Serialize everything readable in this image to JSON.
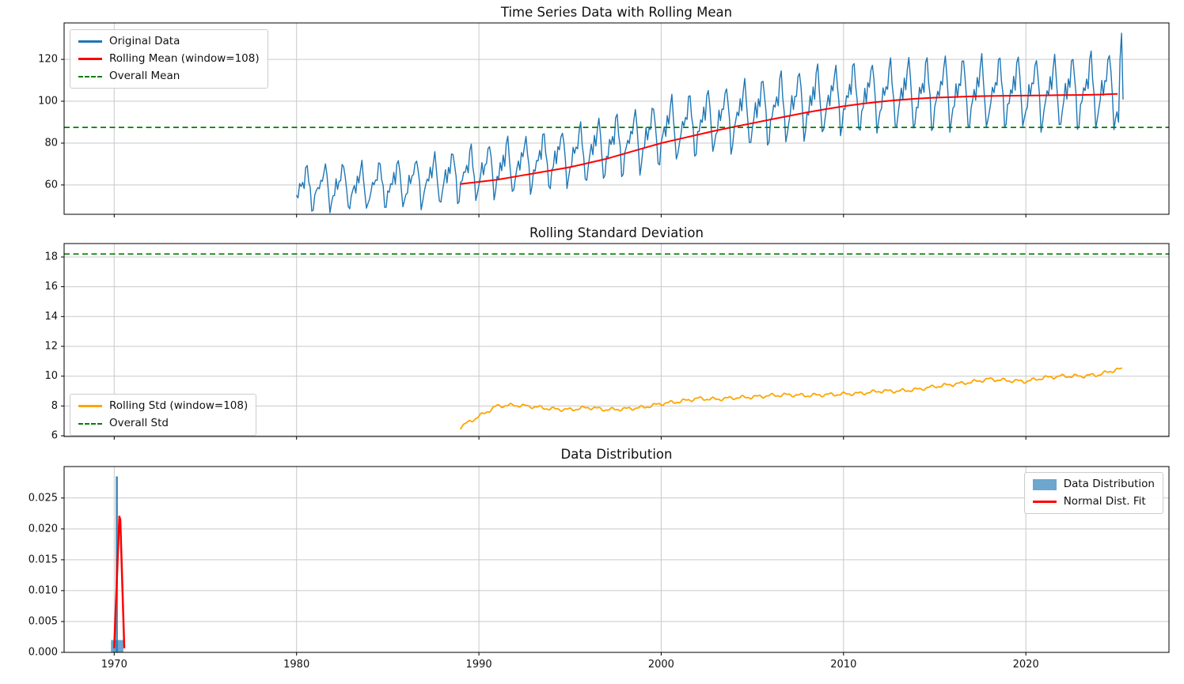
{
  "figure": {
    "background": "#ffffff",
    "grid_color": "#c9c9c9",
    "spine_color": "#000000",
    "tick_label_color": "#111111"
  },
  "chart_data": [
    {
      "id": "time-series-rolling-mean",
      "type": "line",
      "title": "Time Series Data with Rolling Mean",
      "xlim": [
        1967.25,
        2027.85
      ],
      "ylim": [
        46,
        137.4
      ],
      "xticks": [
        1970,
        1980,
        1990,
        2000,
        2010,
        2020
      ],
      "yticks": [
        60,
        80,
        100,
        120
      ],
      "yticklabels": [
        "60",
        "80",
        "100",
        "120"
      ],
      "grid": true,
      "overall_mean": 87.5,
      "overall_mean_color": "#008000",
      "original": {
        "label": "Original Data",
        "color": "#1f77b4",
        "start_year": 1980,
        "season": [
          -0.45,
          -0.3,
          0.15,
          -0.1,
          0.35,
          0.15,
          0.8,
          1,
          0.4,
          -0.15,
          -1,
          -0.85
        ],
        "levels": [
          58.5,
          59,
          59.5,
          59,
          60,
          60.5,
          61.5,
          62.5,
          64,
          65.5,
          67,
          68.5,
          70,
          71.5,
          73,
          75,
          77,
          79,
          81,
          83.5,
          86.5,
          88.5,
          90.5,
          92,
          94,
          95.5,
          97,
          98.5,
          100,
          101,
          102,
          102.5,
          103,
          103.5,
          103.5,
          104,
          104,
          104,
          104.5,
          104.5,
          104,
          104,
          104.5,
          105,
          105.5
        ],
        "amplitudes": [
          10.5,
          10.5,
          11,
          11,
          11,
          11.5,
          11.5,
          12,
          12,
          12.5,
          12.5,
          13,
          13,
          13.5,
          13.5,
          14,
          14,
          14.5,
          14.5,
          14.5,
          15,
          15,
          15,
          15.5,
          15.5,
          15.5,
          16,
          16,
          16,
          16,
          16.5,
          16.5,
          16.5,
          16.5,
          17,
          17,
          17,
          17,
          17,
          17,
          17,
          17,
          17,
          17.5,
          17.5
        ],
        "noise": [
          1.2,
          -1.5,
          0.6,
          1.8,
          -0.9,
          -1.8,
          1.4,
          0.3,
          -1.2,
          1.8,
          -0.5,
          -1.6,
          0.9,
          1.5,
          -1.8,
          0.2,
          -0.4
        ],
        "tail": {
          "start": 2025,
          "step": 0.0833,
          "values": [
            95,
            90,
            120,
            132.5,
            101
          ]
        }
      },
      "rolling_mean": {
        "label": "Rolling Mean (window=108)",
        "color": "#ff0000",
        "x_start": 1989,
        "x_step": 1,
        "y": [
          60.5,
          61.5,
          62.5,
          64,
          65.5,
          67,
          68.5,
          70.5,
          72.5,
          75,
          77.5,
          80,
          82,
          84,
          86,
          87.8,
          89.5,
          91.3,
          93,
          94.7,
          96.2,
          97.6,
          98.8,
          99.8,
          100.6,
          101.2,
          101.7,
          102,
          102.3,
          102.5,
          102.6,
          102.7,
          102.8,
          102.9,
          103,
          103.2,
          103.5
        ]
      },
      "legend": {
        "location": "upper left",
        "items": [
          {
            "label": "Original Data",
            "color": "#1f77b4",
            "style": "line"
          },
          {
            "label": "Rolling Mean (window=108)",
            "color": "#ff0000",
            "style": "line"
          },
          {
            "label": "Overall Mean",
            "color": "#008000",
            "style": "dashed"
          }
        ]
      }
    },
    {
      "id": "rolling-std",
      "type": "line",
      "title": "Rolling Standard Deviation",
      "xlim": [
        1967.25,
        2027.85
      ],
      "ylim": [
        5.95,
        18.9
      ],
      "xticks": [
        1970,
        1980,
        1990,
        2000,
        2010,
        2020
      ],
      "yticks": [
        6,
        8,
        10,
        12,
        14,
        16,
        18
      ],
      "yticklabels": [
        "6",
        "8",
        "10",
        "12",
        "14",
        "16",
        "18"
      ],
      "grid": true,
      "overall_std": 18.2,
      "overall_std_color": "#008000",
      "rolling_std": {
        "label": "Rolling Std (window=108)",
        "color": "#ffa500",
        "x_start": 1989,
        "x_end": 2025.3,
        "y": [
          6.6,
          7.3,
          8.0,
          8.05,
          7.95,
          7.8,
          7.75,
          7.9,
          7.75,
          7.8,
          7.9,
          8.15,
          8.3,
          8.5,
          8.45,
          8.55,
          8.6,
          8.7,
          8.75,
          8.7,
          8.75,
          8.8,
          8.85,
          9.0,
          9.0,
          9.1,
          9.3,
          9.45,
          9.6,
          9.8,
          9.7,
          9.65,
          9.9,
          10.0,
          10.0,
          10.1,
          10.45
        ],
        "wiggle_amp": [
          0.09,
          0.05
        ]
      },
      "legend": {
        "location": "lower left",
        "items": [
          {
            "label": "Rolling Std (window=108)",
            "color": "#ffa500",
            "style": "line"
          },
          {
            "label": "Overall Std",
            "color": "#008000",
            "style": "dashed"
          }
        ]
      }
    },
    {
      "id": "data-distribution",
      "type": "histogram",
      "title": "Data Distribution",
      "xlim": [
        1967.25,
        2027.85
      ],
      "ylim": [
        0,
        0.0301
      ],
      "xticks": [
        1970,
        1980,
        1990,
        2000,
        2010,
        2020
      ],
      "xticklabels": [
        "1970",
        "1980",
        "1990",
        "2000",
        "2010",
        "2020"
      ],
      "yticks": [
        0,
        0.005,
        0.01,
        0.015,
        0.02,
        0.025
      ],
      "yticklabels": [
        "0.000",
        "0.005",
        "0.010",
        "0.015",
        "0.020",
        "0.025"
      ],
      "grid": true,
      "bars": [
        {
          "x": 1969.82,
          "width": 0.68,
          "height": 0.002,
          "color": "rgba(31,119,180,0.65)"
        },
        {
          "x": 1970.08,
          "width": 0.12,
          "height": 0.0285,
          "color": "rgba(31,119,180,0.8)"
        }
      ],
      "normal_fit": {
        "label": "Normal Dist. Fit",
        "color": "#ff0000",
        "points": [
          [
            1970.0,
            0.0008
          ],
          [
            1970.28,
            0.022
          ],
          [
            1970.33,
            0.0215
          ],
          [
            1970.55,
            0.0008
          ]
        ]
      },
      "legend": {
        "location": "upper right",
        "items": [
          {
            "label": "Data Distribution",
            "color": "rgba(31,119,180,0.65)",
            "style": "patch"
          },
          {
            "label": "Normal Dist. Fit",
            "color": "#ff0000",
            "style": "line"
          }
        ]
      }
    }
  ]
}
